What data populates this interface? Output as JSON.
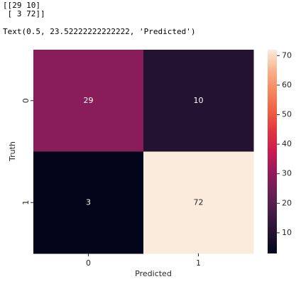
{
  "output_lines": [
    "[[29 10]",
    " [ 3 72]]",
    "Text(0.5, 23.52222222222222, 'Predicted')"
  ],
  "chart_data": {
    "type": "heatmap",
    "x": [
      "0",
      "1"
    ],
    "y": [
      "0",
      "1"
    ],
    "values": [
      [
        29,
        10
      ],
      [
        3,
        72
      ]
    ],
    "xlabel": "Predicted",
    "ylabel": "Truth",
    "colormap": [
      "#03051a",
      "#221331",
      "#451c47",
      "#6a1f56",
      "#921c5b",
      "#cb1b4f",
      "#e13342",
      "#f06043",
      "#f58860",
      "#f6b48e",
      "#faebdd"
    ],
    "zlim": [
      3,
      72
    ],
    "zticks": [
      10,
      20,
      30,
      40,
      50,
      60,
      70
    ],
    "annotate": true
  }
}
